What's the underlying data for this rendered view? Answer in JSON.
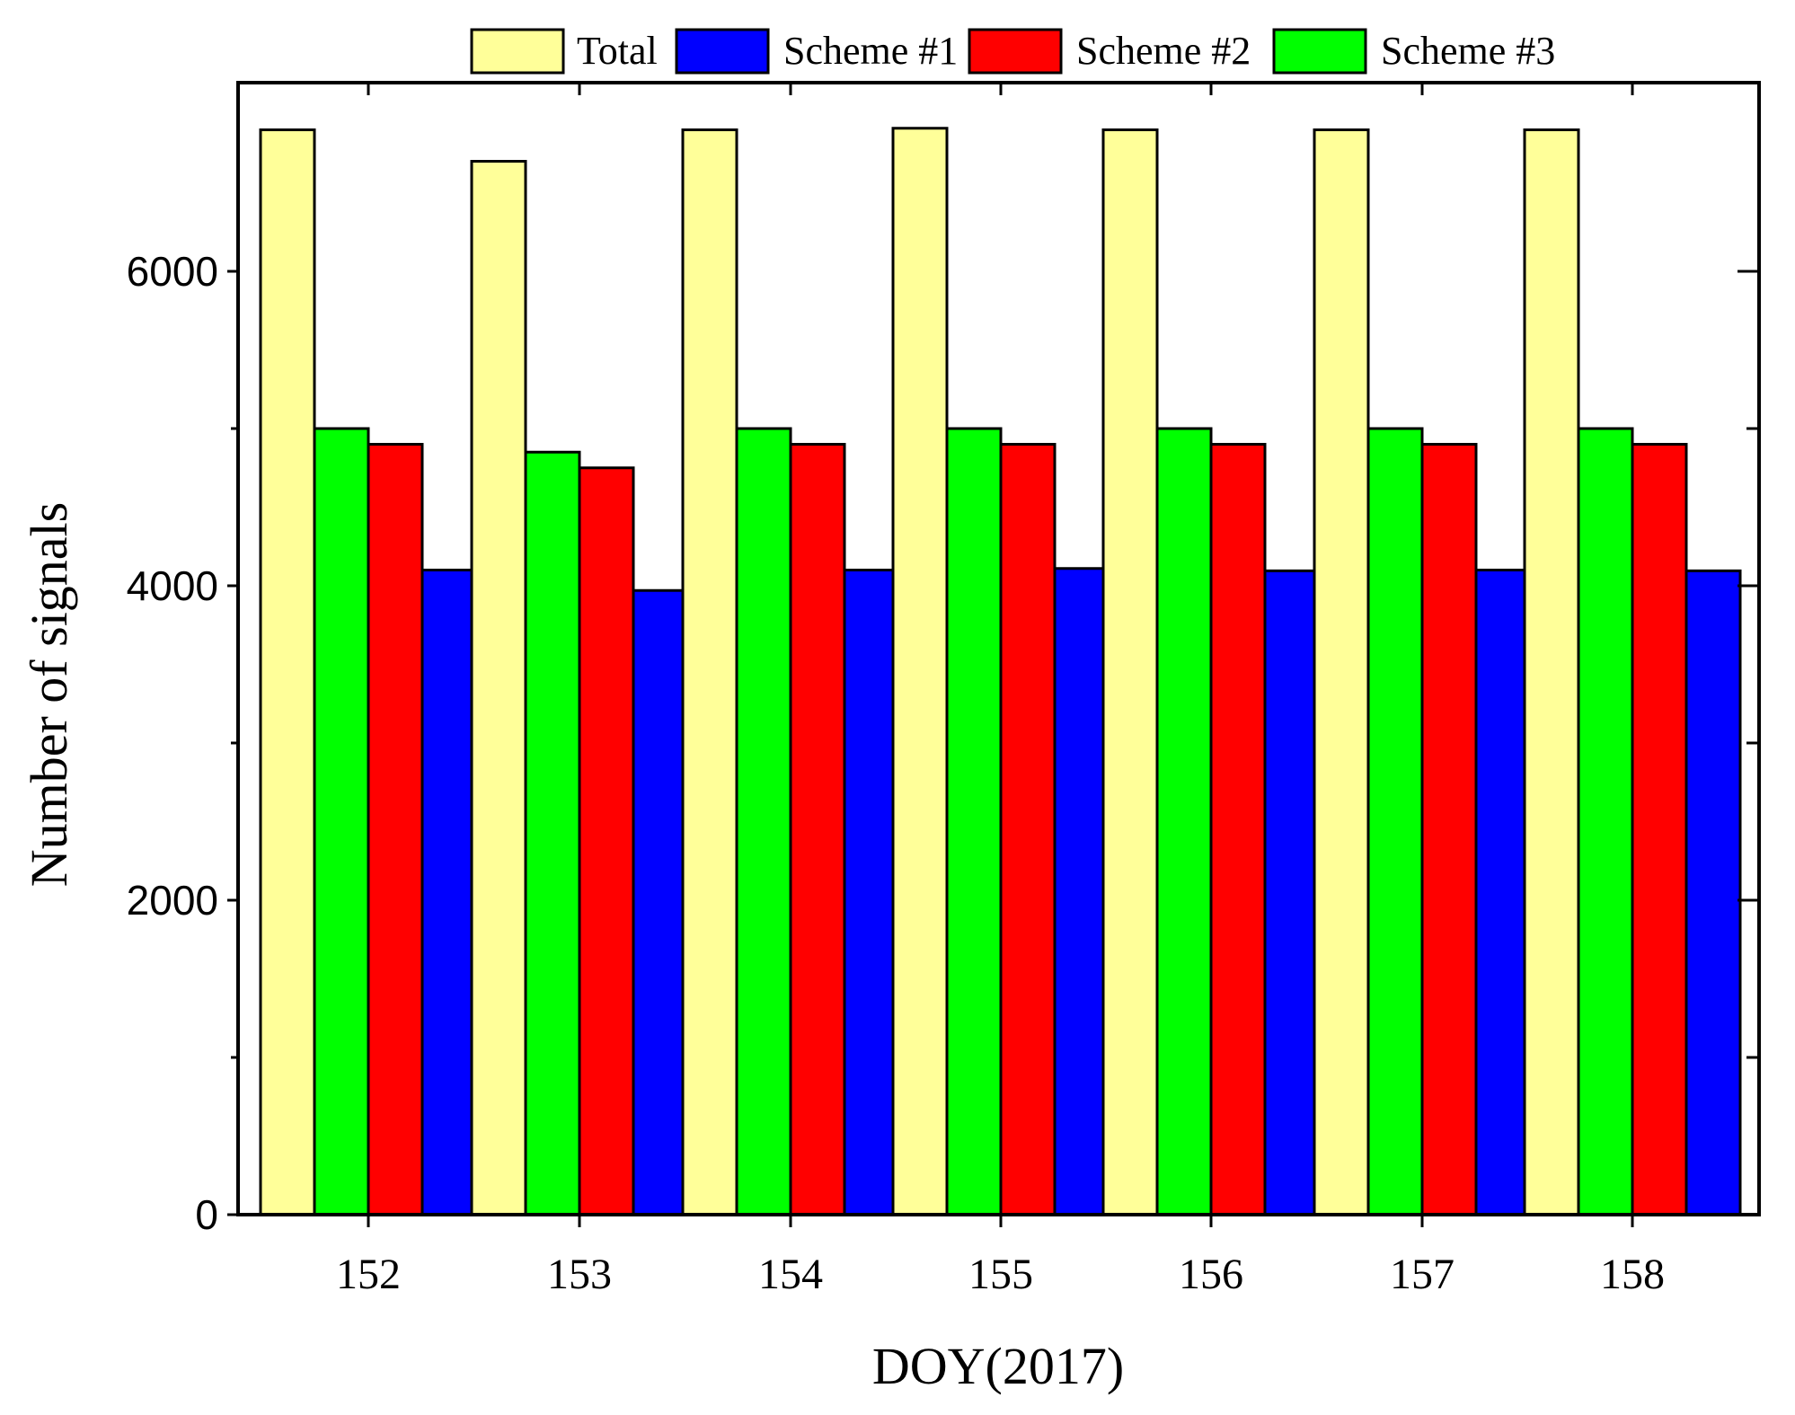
{
  "chart_data": {
    "type": "bar",
    "title": "",
    "xlabel": "DOY(2017)",
    "ylabel": "Number of signals",
    "categories": [
      "152",
      "153",
      "154",
      "155",
      "156",
      "157",
      "158"
    ],
    "ylim": [
      0,
      6900
    ],
    "yticks": [
      0,
      2000,
      4000,
      6000
    ],
    "ytick_labels": [
      "0",
      "2000",
      "4000",
      "6000"
    ],
    "minor_yticks": [
      1000,
      3000,
      5000
    ],
    "series_draw_order": [
      "Total",
      "Scheme #3",
      "Scheme #2",
      "Scheme #1"
    ],
    "series": [
      {
        "name": "Total",
        "color": "#FFFF99",
        "values": [
          6900,
          6700,
          6900,
          6910,
          6900,
          6900,
          6900
        ]
      },
      {
        "name": "Scheme #1",
        "color": "#0000FF",
        "values": [
          4100,
          3970,
          4100,
          4110,
          4095,
          4100,
          4095
        ]
      },
      {
        "name": "Scheme #2",
        "color": "#FF0000",
        "values": [
          4900,
          4750,
          4900,
          4900,
          4900,
          4900,
          4900
        ]
      },
      {
        "name": "Scheme #3",
        "color": "#00FF00",
        "values": [
          5000,
          4850,
          5000,
          5000,
          5000,
          5000,
          5000
        ]
      }
    ],
    "legend": {
      "position": "top",
      "entries": [
        "Total",
        "Scheme #1",
        "Scheme #2",
        "Scheme #3"
      ]
    },
    "grid": false
  }
}
